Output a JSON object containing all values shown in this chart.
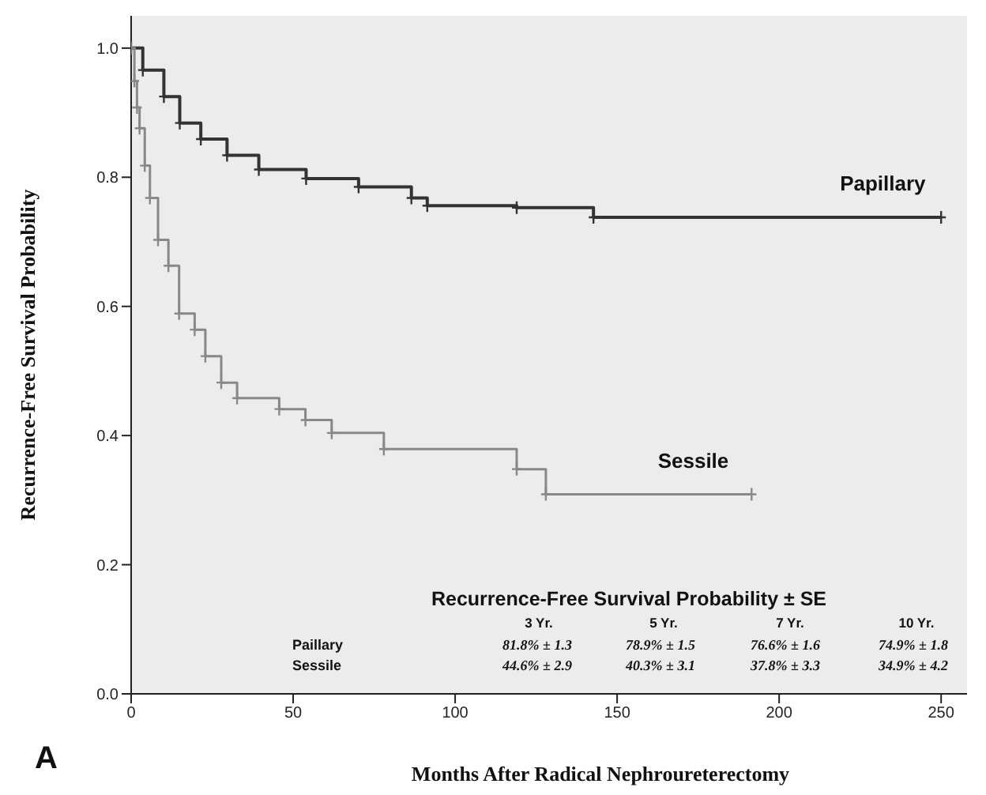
{
  "chart_data": {
    "type": "step",
    "xlabel": "Months After Radical Nephroureterectomy",
    "ylabel": "Recurrence-Free Survival Probability",
    "xlim": [
      0,
      258
    ],
    "xticks": [
      0,
      50,
      100,
      150,
      200,
      250
    ],
    "ylim": [
      0,
      1.05
    ],
    "yticks": [
      {
        "value": 0,
        "label": "0.0"
      },
      {
        "value": 0.2,
        "label": "0.2"
      },
      {
        "value": 0.4,
        "label": "0.4"
      },
      {
        "value": 0.6,
        "label": "0.6"
      },
      {
        "value": 0.8,
        "label": "0.8"
      },
      {
        "value": 1,
        "label": "1.0"
      }
    ],
    "marker": "cross",
    "line_style": "solid",
    "series": [
      {
        "name": "Papillary",
        "color": "#333333",
        "x": [
          0,
          3.6,
          10.1,
          15,
          21.5,
          29.6,
          39.4,
          54,
          70.2,
          86.5,
          91.4,
          119,
          142.7,
          250
        ],
        "values": [
          1.0,
          0.966,
          0.925,
          0.884,
          0.859,
          0.834,
          0.812,
          0.798,
          0.785,
          0.768,
          0.756,
          0.753,
          0.738,
          0.738
        ]
      },
      {
        "name": "Sessile",
        "color": "#888888",
        "x": [
          0,
          1,
          1.8,
          2.6,
          4.2,
          5.8,
          8.3,
          11.5,
          14.8,
          19.6,
          22.9,
          27.8,
          32.7,
          45.7,
          53.8,
          61.9,
          78,
          119,
          128,
          191.5
        ],
        "values": [
          1.0,
          0.949,
          0.908,
          0.876,
          0.818,
          0.768,
          0.703,
          0.663,
          0.589,
          0.564,
          0.523,
          0.482,
          0.458,
          0.441,
          0.424,
          0.404,
          0.379,
          0.348,
          0.309,
          0.309
        ]
      }
    ],
    "annotations": [
      "A",
      "Recurrence-Free Survival Probability ± SE",
      "3 Yr.",
      "5 Yr.",
      "7 Yr.",
      "10 Yr.",
      "Paillary",
      "81.8% ± 1.3",
      "78.9% ± 1.5",
      "76.6% ± 1.6",
      "74.9% ± 1.8",
      "Sessile",
      "44.6% ± 2.9",
      "40.3% ± 3.1",
      "37.8% ± 3.3",
      "34.9% ± 4.2"
    ]
  }
}
